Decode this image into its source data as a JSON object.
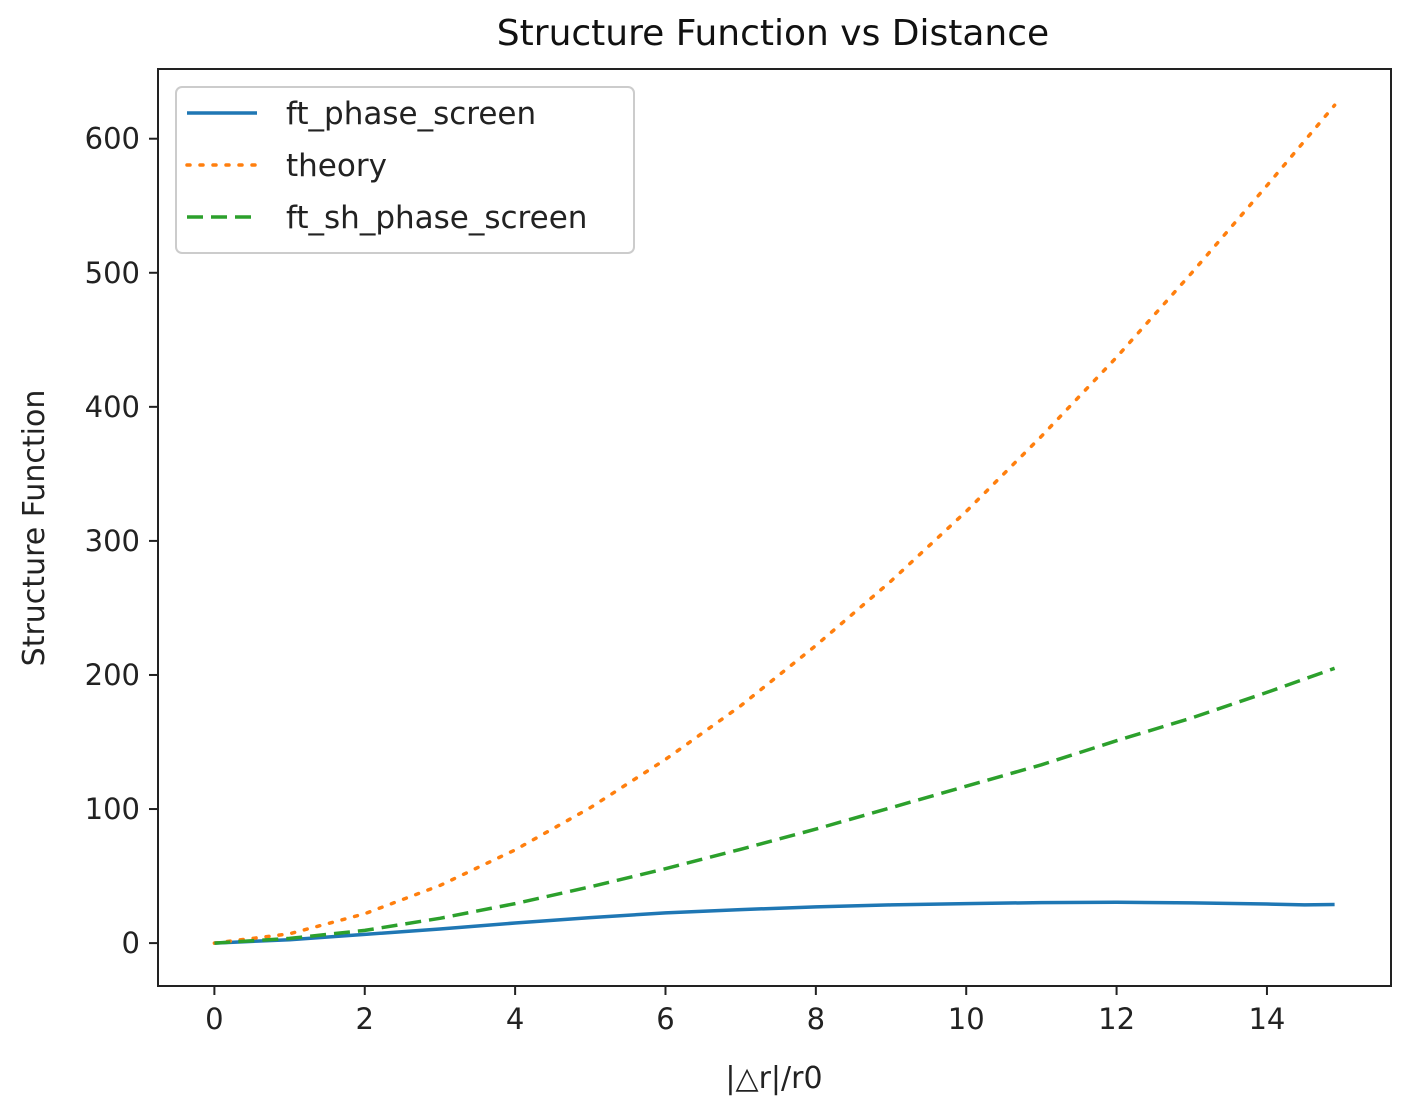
{
  "chart_data": {
    "type": "line",
    "title": "Structure Function vs Distance",
    "xlabel": "|△r|/r0",
    "ylabel": "Structure Function",
    "xlim": [
      -0.75,
      15.65
    ],
    "ylim": [
      -32,
      652
    ],
    "xticks": [
      0,
      2,
      4,
      6,
      8,
      10,
      12,
      14
    ],
    "yticks": [
      0,
      100,
      200,
      300,
      400,
      500,
      600
    ],
    "grid": false,
    "legend_position": "top-left",
    "series": [
      {
        "name": "ft_phase_screen",
        "color": "#1f77b4",
        "style": "solid",
        "x": [
          0,
          1,
          2,
          3,
          4,
          5,
          6,
          7,
          8,
          9,
          10,
          11,
          12,
          13,
          14,
          14.5,
          14.9
        ],
        "y": [
          0,
          2.5,
          6.5,
          10.5,
          15,
          19,
          22.5,
          25,
          27,
          28.5,
          29.5,
          30.2,
          30.5,
          30,
          29.2,
          28.5,
          28.8
        ]
      },
      {
        "name": "theory",
        "color": "#ff7f0e",
        "style": "dotted",
        "x": [
          0,
          1,
          2,
          3,
          4,
          5,
          6,
          7,
          8,
          9,
          10,
          11,
          12,
          13,
          14,
          14.9
        ],
        "y": [
          0,
          6.9,
          21.9,
          43,
          69.5,
          101,
          137,
          177,
          222,
          270,
          322,
          378,
          437,
          500,
          565,
          625
        ]
      },
      {
        "name": "ft_sh_phase_screen",
        "color": "#2ca02c",
        "style": "dashed",
        "x": [
          0,
          1,
          2,
          3,
          4,
          5,
          6,
          7,
          8,
          9,
          10,
          11,
          12,
          13,
          14,
          14.9
        ],
        "y": [
          0,
          3.5,
          9.5,
          18.5,
          29.5,
          42,
          55.5,
          70,
          85,
          101,
          117,
          133,
          151,
          168,
          187,
          205
        ]
      }
    ]
  }
}
